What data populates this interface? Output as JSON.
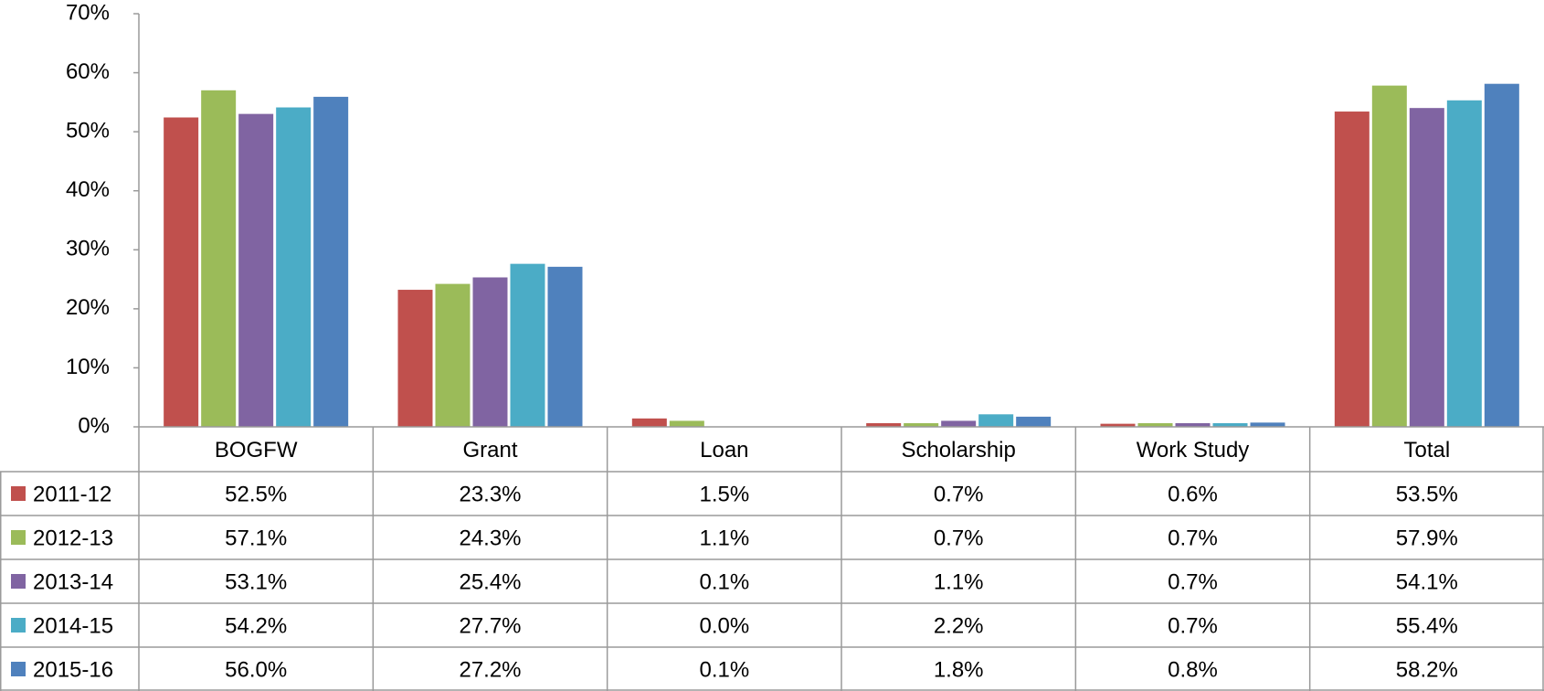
{
  "chart_data": {
    "type": "bar",
    "categories": [
      "BOGFW",
      "Grant",
      "Loan",
      "Scholarship",
      "Work Study",
      "Total"
    ],
    "series": [
      {
        "name": "2011-12",
        "color": "#c0504d",
        "values": [
          52.5,
          23.3,
          1.5,
          0.7,
          0.6,
          53.5
        ],
        "value_labels": [
          "52.5%",
          "23.3%",
          "1.5%",
          "0.7%",
          "0.6%",
          "53.5%"
        ]
      },
      {
        "name": "2012-13",
        "color": "#9bbb59",
        "values": [
          57.1,
          24.3,
          1.1,
          0.7,
          0.7,
          57.9
        ],
        "value_labels": [
          "57.1%",
          "24.3%",
          "1.1%",
          "0.7%",
          "0.7%",
          "57.9%"
        ]
      },
      {
        "name": "2013-14",
        "color": "#8064a2",
        "values": [
          53.1,
          25.4,
          0.1,
          1.1,
          0.7,
          54.1
        ],
        "value_labels": [
          "53.1%",
          "25.4%",
          "0.1%",
          "1.1%",
          "0.7%",
          "54.1%"
        ]
      },
      {
        "name": "2014-15",
        "color": "#4bacc6",
        "values": [
          54.2,
          27.7,
          0.0,
          2.2,
          0.7,
          55.4
        ],
        "value_labels": [
          "54.2%",
          "27.7%",
          "0.0%",
          "2.2%",
          "0.7%",
          "55.4%"
        ]
      },
      {
        "name": "2015-16",
        "color": "#4f81bd",
        "values": [
          56.0,
          27.2,
          0.1,
          1.8,
          0.8,
          58.2
        ],
        "value_labels": [
          "56.0%",
          "27.2%",
          "0.1%",
          "1.8%",
          "0.8%",
          "58.2%"
        ]
      }
    ],
    "ylim": [
      0,
      70
    ],
    "yticks": [
      {
        "value": 0,
        "label": "0%"
      },
      {
        "value": 10,
        "label": "10%"
      },
      {
        "value": 20,
        "label": "20%"
      },
      {
        "value": 30,
        "label": "30%"
      },
      {
        "value": 40,
        "label": "40%"
      },
      {
        "value": 50,
        "label": "50%"
      },
      {
        "value": 60,
        "label": "60%"
      },
      {
        "value": 70,
        "label": "70%"
      }
    ],
    "legend": "table"
  }
}
